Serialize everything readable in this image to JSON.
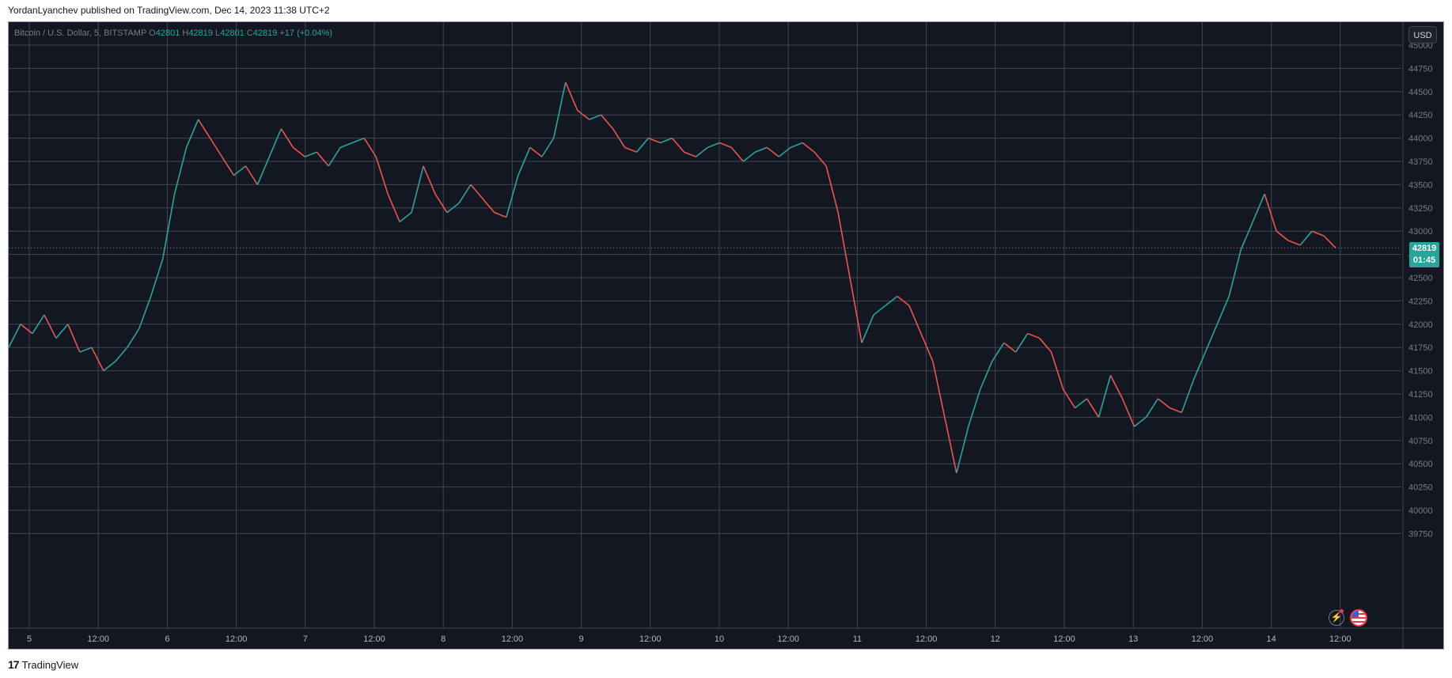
{
  "header": {
    "published_line": "YordanLyanchev published on TradingView.com, Dec 14, 2023 11:38 UTC+2"
  },
  "legend": {
    "symbol": "Bitcoin / U.S. Dollar, 5, BITSTAMP",
    "o_label": "O",
    "o": "42801",
    "h_label": "H",
    "h": "42819",
    "l_label": "L",
    "l": "42801",
    "c_label": "C",
    "c": "42819",
    "change": "+17 (+0.04%)"
  },
  "toolbar": {
    "currency_label": "USD"
  },
  "price_tag": {
    "price": "42819",
    "countdown": "01:45",
    "color": "#26a69a"
  },
  "footer": {
    "brand": "TradingView",
    "logo_text": "17"
  },
  "colors": {
    "up": "#26a69a",
    "down": "#ef5350",
    "background": "#131722",
    "grid": "#434651",
    "text": "#b2b5be"
  },
  "icons": [
    "flash-icon",
    "us-flag-icon"
  ],
  "chart_data": {
    "type": "line",
    "series": [
      {
        "values": [
          41750,
          42000,
          41900,
          42100,
          41850,
          42000,
          41700,
          41750,
          41500,
          41600,
          41750,
          41950,
          42300,
          42700,
          43400,
          43900,
          44200,
          44000,
          43800,
          43600,
          43700,
          43500,
          43800,
          44100,
          43900,
          43800,
          43850,
          43700,
          43900,
          43950,
          44000,
          43800,
          43400,
          43100,
          43200,
          43700,
          43400,
          43200,
          43300,
          43500,
          43350,
          43200,
          43150,
          43600,
          43900,
          43800,
          44000,
          44600,
          44300,
          44200,
          44250,
          44100,
          43900,
          43850,
          44000,
          43950,
          44000,
          43850,
          43800,
          43900,
          43950,
          43900,
          43750,
          43850,
          43900,
          43800,
          43900,
          43950,
          43850,
          43700,
          43200,
          42500,
          41800,
          42100,
          42200,
          42300,
          42200,
          41900,
          41600,
          41000,
          40400,
          40900,
          41300,
          41600,
          41800,
          41700,
          41900,
          41850,
          41700,
          41300,
          41100,
          41200,
          41000,
          41450,
          41200,
          40900,
          41000,
          41200,
          41100,
          41050,
          41400,
          41700,
          42000,
          42300,
          42800,
          43100,
          43400,
          43000,
          42900,
          42850,
          43000,
          42950,
          42820
        ],
        "x_start_label": "5",
        "x_end_label": "14 ~12:00"
      }
    ],
    "y_axis": {
      "min": 39750,
      "max": 45000,
      "step": 250,
      "ticks": [
        "45000",
        "44750",
        "44500",
        "44250",
        "44000",
        "43750",
        "43500",
        "43250",
        "43000",
        "42750",
        "42500",
        "42250",
        "42000",
        "41750",
        "41500",
        "41250",
        "41000",
        "40750",
        "40500",
        "40250",
        "40000",
        "39750"
      ]
    },
    "x_axis": {
      "ticks": [
        "5",
        "12:00",
        "6",
        "12:00",
        "7",
        "12:00",
        "8",
        "12:00",
        "9",
        "12:00",
        "10",
        "12:00",
        "11",
        "12:00",
        "12",
        "12:00",
        "13",
        "12:00",
        "14",
        "12:00"
      ]
    },
    "last_price": 42819,
    "grid": true,
    "candle_interval": "5"
  }
}
